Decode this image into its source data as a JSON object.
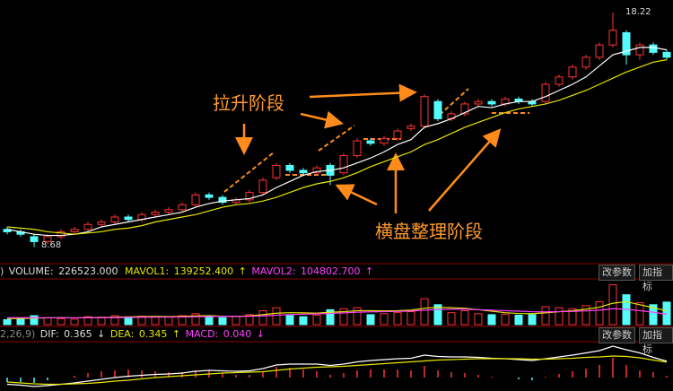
{
  "chart_data": {
    "type": "candlestick",
    "price": {
      "open": [
        9.4,
        9.3,
        9.1,
        8.9,
        9.1,
        9.3,
        9.4,
        9.6,
        9.7,
        9.9,
        9.8,
        10.0,
        10.1,
        10.2,
        10.4,
        10.8,
        10.7,
        10.5,
        10.6,
        10.9,
        11.5,
        12.0,
        11.8,
        11.7,
        12.0,
        11.7,
        12.4,
        13.0,
        12.9,
        13.1,
        13.5,
        13.6,
        14.6,
        13.9,
        14.1,
        14.5,
        14.6,
        14.5,
        14.7,
        14.6,
        14.6,
        15.3,
        15.6,
        16.0,
        16.4,
        16.9,
        17.4,
        16.5,
        16.9,
        16.6
      ],
      "high": [
        9.5,
        9.4,
        9.2,
        9.2,
        9.4,
        9.5,
        9.7,
        9.8,
        10.0,
        10.0,
        10.1,
        10.2,
        10.3,
        10.5,
        10.9,
        10.9,
        10.8,
        10.7,
        11.0,
        11.5,
        12.1,
        12.1,
        11.9,
        12.0,
        12.1,
        12.5,
        13.1,
        13.1,
        13.2,
        13.5,
        13.7,
        14.9,
        14.7,
        14.2,
        14.6,
        14.7,
        14.7,
        14.8,
        14.8,
        14.7,
        15.4,
        15.7,
        16.1,
        16.5,
        17.0,
        18.22,
        17.5,
        17.0,
        17.0,
        16.7
      ],
      "low": [
        9.2,
        9.1,
        8.68,
        8.8,
        9.0,
        9.2,
        9.3,
        9.5,
        9.6,
        9.7,
        9.7,
        9.9,
        10.0,
        10.1,
        10.3,
        10.6,
        10.4,
        10.4,
        10.5,
        10.8,
        11.4,
        11.7,
        11.6,
        11.6,
        11.2,
        11.6,
        12.3,
        12.8,
        12.8,
        13.0,
        13.4,
        13.5,
        13.8,
        13.8,
        14.0,
        14.4,
        14.4,
        14.4,
        14.5,
        14.4,
        14.5,
        15.2,
        15.5,
        15.9,
        16.3,
        16.8,
        16.1,
        16.3,
        16.5,
        16.3
      ],
      "close": [
        9.3,
        9.2,
        8.9,
        9.1,
        9.3,
        9.4,
        9.6,
        9.7,
        9.9,
        9.8,
        10.0,
        10.1,
        10.2,
        10.4,
        10.8,
        10.7,
        10.5,
        10.6,
        10.9,
        11.4,
        12.0,
        11.8,
        11.7,
        11.9,
        11.6,
        12.4,
        13.0,
        12.9,
        13.1,
        13.4,
        13.6,
        14.8,
        13.9,
        14.1,
        14.5,
        14.6,
        14.5,
        14.7,
        14.6,
        14.5,
        15.3,
        15.6,
        16.0,
        16.4,
        16.9,
        17.5,
        16.5,
        16.9,
        16.6,
        16.4
      ],
      "ma": [
        {
          "color": "#ffffff",
          "values": [
            9.4,
            9.3,
            9.2,
            9.15,
            9.15,
            9.2,
            9.3,
            9.5,
            9.6,
            9.7,
            9.8,
            9.9,
            10.0,
            10.1,
            10.3,
            10.45,
            10.55,
            10.6,
            10.65,
            10.8,
            11.1,
            11.35,
            11.6,
            11.75,
            11.8,
            11.9,
            12.1,
            12.3,
            12.55,
            12.85,
            13.05,
            13.55,
            13.7,
            13.9,
            14.15,
            14.4,
            14.35,
            14.5,
            14.6,
            14.6,
            14.8,
            15.05,
            15.3,
            15.6,
            16.05,
            16.5,
            16.65,
            16.8,
            16.8,
            16.7
          ]
        },
        {
          "color": "#e6e600",
          "values": [
            9.5,
            9.45,
            9.4,
            9.3,
            9.25,
            9.2,
            9.25,
            9.3,
            9.4,
            9.45,
            9.55,
            9.7,
            9.8,
            9.9,
            10.0,
            10.15,
            10.3,
            10.4,
            10.45,
            10.55,
            10.7,
            10.9,
            11.1,
            11.25,
            11.35,
            11.5,
            11.7,
            11.95,
            12.15,
            12.35,
            12.55,
            12.85,
            13.05,
            13.3,
            13.55,
            13.75,
            13.95,
            14.15,
            14.3,
            14.4,
            14.5,
            14.65,
            14.85,
            15.05,
            15.3,
            15.55,
            15.8,
            16.0,
            16.2,
            16.3
          ]
        }
      ],
      "up_color": "#ff3232",
      "down_color": "#54fcfc",
      "ylim": [
        8.04,
        18.73
      ]
    },
    "volume": {
      "params": ")",
      "series": [
        {
          "name": "VOLUME",
          "values": [
            50000,
            60000,
            90000,
            70000,
            60000,
            55000,
            80000,
            75000,
            90000,
            70000,
            85000,
            80000,
            75000,
            90000,
            110000,
            80000,
            70000,
            85000,
            100000,
            140000,
            170000,
            90000,
            80000,
            95000,
            150000,
            160000,
            170000,
            100000,
            110000,
            120000,
            130000,
            260000,
            200000,
            120000,
            140000,
            110000,
            100000,
            105000,
            95000,
            100000,
            180000,
            170000,
            160000,
            190000,
            230000,
            400000,
            300000,
            220000,
            200000,
            226523
          ],
          "value_label": "226523.000"
        },
        {
          "name": "MAVOL1",
          "color": "#e6e600",
          "values": [
            60000,
            62000,
            65000,
            68000,
            70000,
            68000,
            70000,
            72000,
            75000,
            78000,
            80000,
            82000,
            80000,
            82000,
            88000,
            90000,
            85000,
            82000,
            88000,
            100000,
            115000,
            120000,
            118000,
            115000,
            125000,
            130000,
            140000,
            140000,
            138000,
            140000,
            145000,
            165000,
            175000,
            170000,
            165000,
            150000,
            135000,
            120000,
            112000,
            110000,
            118000,
            130000,
            140000,
            155000,
            175000,
            215000,
            230000,
            200000,
            170000,
            139252.4
          ],
          "value_label": "139252.400"
        },
        {
          "name": "MAVOL2",
          "color": "#ff40ff",
          "values": [
            70000,
            70000,
            70000,
            69000,
            68000,
            68000,
            69000,
            70000,
            71000,
            72000,
            74000,
            75000,
            76000,
            77000,
            80000,
            82000,
            83000,
            83000,
            84000,
            88000,
            95000,
            100000,
            105000,
            108000,
            112000,
            118000,
            125000,
            128000,
            130000,
            132000,
            136000,
            145000,
            152000,
            155000,
            155000,
            150000,
            145000,
            140000,
            135000,
            130000,
            128000,
            130000,
            133000,
            138000,
            145000,
            160000,
            155000,
            140000,
            125000,
            104802.7
          ],
          "value_label": "104802.700"
        }
      ],
      "ylim": [
        0,
        450000
      ]
    },
    "macd": {
      "params": "2,26,9)",
      "series": [
        {
          "name": "DIF",
          "color": "#ffffff",
          "values": [
            -0.15,
            -0.17,
            -0.2,
            -0.18,
            -0.15,
            -0.12,
            -0.08,
            -0.04,
            0,
            0.03,
            0.05,
            0.07,
            0.08,
            0.1,
            0.14,
            0.16,
            0.15,
            0.14,
            0.15,
            0.2,
            0.28,
            0.3,
            0.3,
            0.3,
            0.27,
            0.3,
            0.35,
            0.38,
            0.4,
            0.42,
            0.43,
            0.5,
            0.47,
            0.46,
            0.46,
            0.45,
            0.43,
            0.42,
            0.4,
            0.38,
            0.42,
            0.46,
            0.5,
            0.55,
            0.6,
            0.7,
            0.62,
            0.55,
            0.45,
            0.365
          ],
          "value_label": "0.365"
        },
        {
          "name": "DEA",
          "color": "#e6e600",
          "values": [
            -0.1,
            -0.12,
            -0.14,
            -0.15,
            -0.15,
            -0.14,
            -0.13,
            -0.11,
            -0.08,
            -0.06,
            -0.03,
            0,
            0.02,
            0.04,
            0.06,
            0.08,
            0.1,
            0.11,
            0.12,
            0.13,
            0.16,
            0.19,
            0.21,
            0.23,
            0.24,
            0.25,
            0.27,
            0.29,
            0.31,
            0.33,
            0.35,
            0.37,
            0.39,
            0.4,
            0.41,
            0.42,
            0.42,
            0.42,
            0.42,
            0.41,
            0.41,
            0.42,
            0.43,
            0.45,
            0.46,
            0.48,
            0.47,
            0.44,
            0.39,
            0.345
          ],
          "value_label": "0.345"
        },
        {
          "name": "MACD",
          "color": "#ff40ff",
          "values": [
            -0.1,
            -0.1,
            -0.12,
            -0.06,
            0,
            0.04,
            0.1,
            0.14,
            0.16,
            0.18,
            0.16,
            0.14,
            0.12,
            0.12,
            0.16,
            0.16,
            0.1,
            0.06,
            0.06,
            0.14,
            0.24,
            0.22,
            0.18,
            0.14,
            0.06,
            0.1,
            0.16,
            0.18,
            0.18,
            0.18,
            0.16,
            0.26,
            0.16,
            0.12,
            0.1,
            0.06,
            0.02,
            0,
            -0.04,
            -0.06,
            0.02,
            0.08,
            0.14,
            0.2,
            0.28,
            0.44,
            0.28,
            0.16,
            0.12,
            0.04
          ],
          "value_label": "0.040"
        }
      ],
      "ylim": [
        -0.3,
        0.8
      ]
    },
    "buttons": [
      "改参数",
      "加指标"
    ],
    "annotations": [
      "拉升阶段",
      "横盘整理阶段"
    ]
  }
}
